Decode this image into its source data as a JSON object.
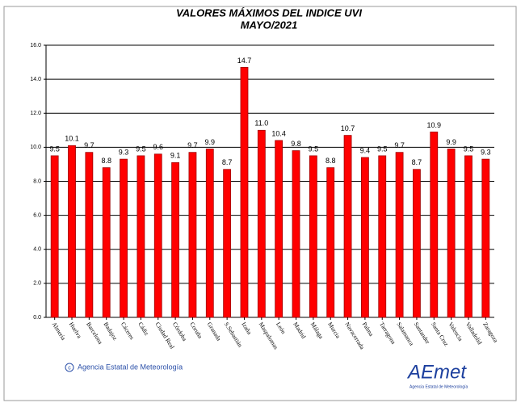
{
  "chart_data": {
    "type": "bar",
    "title": "VALORES MÁXIMOS DEL INDICE UVI",
    "subtitle": "MAYO/2021",
    "categories": [
      "Almería",
      "Huelva",
      "Barcelona",
      "Badajoz",
      "Cáceres",
      "Cádiz",
      "Ciudad Real",
      "Córdoba",
      "Coruña",
      "Granada",
      "S.Sebastián",
      "Izaña",
      "Maspalomas",
      "León",
      "Madrid",
      "Málaga",
      "Murcia",
      "Navacerrada",
      "Palma",
      "Tarragona",
      "Salamanca",
      "Santander",
      "Santa Cruz",
      "Valencia",
      "Valladolid",
      "Zaragoza"
    ],
    "values": [
      9.5,
      10.1,
      9.7,
      8.8,
      9.3,
      9.5,
      9.6,
      9.1,
      9.7,
      9.9,
      8.7,
      14.7,
      11.0,
      10.4,
      9.8,
      9.5,
      8.8,
      10.7,
      9.4,
      9.5,
      9.7,
      8.7,
      10.9,
      9.9,
      9.5,
      9.3
    ],
    "value_labels": [
      "9.5",
      "10.1",
      "9.7",
      "8.8",
      "9.3",
      "9.5",
      "9.6",
      "9.1",
      "9.7",
      "9.9",
      "8.7",
      "14.7",
      "11.0",
      "10.4",
      "9.8",
      "9.5",
      "8.8",
      "10.7",
      "9.4",
      "9.5",
      "9.7",
      "8.7",
      "10.9",
      "9.9",
      "9.5",
      "9.3"
    ],
    "color": "#ff0000",
    "ylim": [
      0,
      16
    ],
    "yticks": [
      {
        "value": 0,
        "label": "0.0"
      },
      {
        "value": 2,
        "label": "2.0"
      },
      {
        "value": 4,
        "label": "4.0"
      },
      {
        "value": 6,
        "label": "6.0"
      },
      {
        "value": 8,
        "label": "8.0"
      },
      {
        "value": 10,
        "label": "10.0"
      },
      {
        "value": 12,
        "label": "12.0"
      },
      {
        "value": 14,
        "label": "14.0"
      },
      {
        "value": 16,
        "label": "16.0"
      }
    ],
    "grid": true
  },
  "footer": {
    "credit": "Agencia Estatal de Meteorología",
    "logo": "AEmet",
    "logo_caption": "Agencia Estatal de Meteorología"
  }
}
